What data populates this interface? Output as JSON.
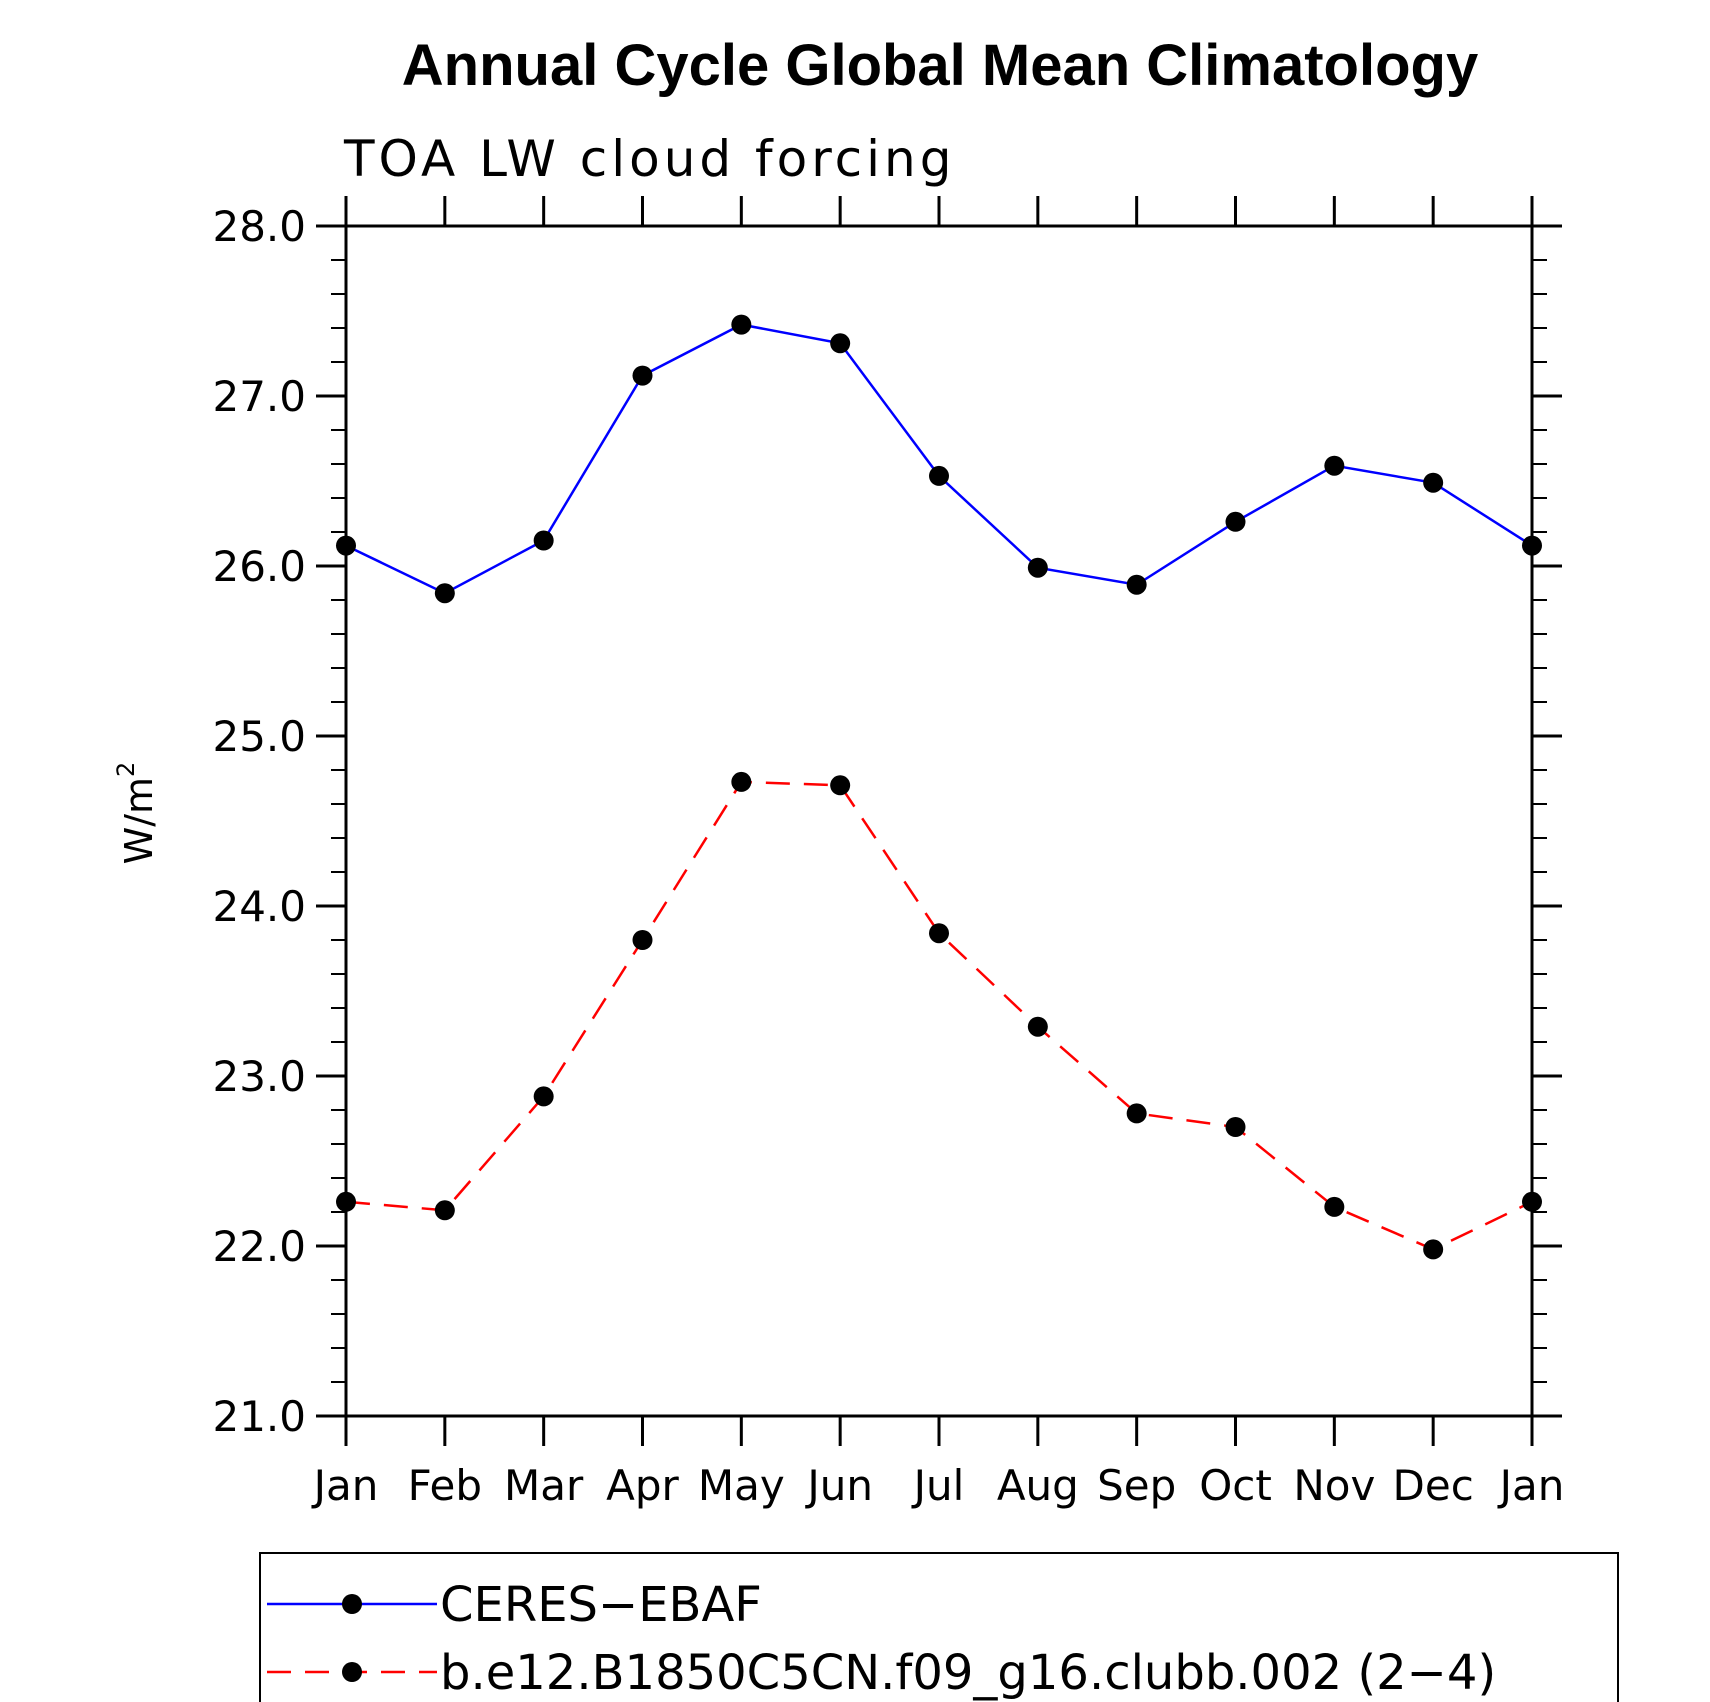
{
  "chart_data": {
    "type": "line",
    "title": "Annual Cycle Global Mean Climatology",
    "subtitle": "TOA LW cloud forcing",
    "xlabel": "",
    "ylabel": "W/m",
    "ylabel_superscript": "2",
    "categories": [
      "Jan",
      "Feb",
      "Mar",
      "Apr",
      "May",
      "Jun",
      "Jul",
      "Aug",
      "Sep",
      "Oct",
      "Nov",
      "Dec",
      "Jan"
    ],
    "ylim": [
      21.0,
      28.0
    ],
    "yticks": [
      "21.0",
      "22.0",
      "23.0",
      "24.0",
      "25.0",
      "26.0",
      "27.0",
      "28.0"
    ],
    "grid": false,
    "legend_position": "bottom",
    "series": [
      {
        "name": "CERES−EBAF",
        "color": "#0000ff",
        "line_style": "solid",
        "marker": "filled-circle",
        "values": [
          26.12,
          25.84,
          26.15,
          27.12,
          27.42,
          27.31,
          26.53,
          25.99,
          25.89,
          26.26,
          26.59,
          26.49,
          26.12
        ]
      },
      {
        "name": "b.e12.B1850C5CN.f09_g16.clubb.002 (2−4)",
        "color": "#ff0000",
        "line_style": "dashed",
        "marker": "filled-circle",
        "values": [
          22.26,
          22.21,
          22.88,
          23.8,
          24.73,
          24.71,
          23.84,
          23.29,
          22.78,
          22.7,
          22.23,
          21.98,
          22.26
        ]
      }
    ]
  }
}
